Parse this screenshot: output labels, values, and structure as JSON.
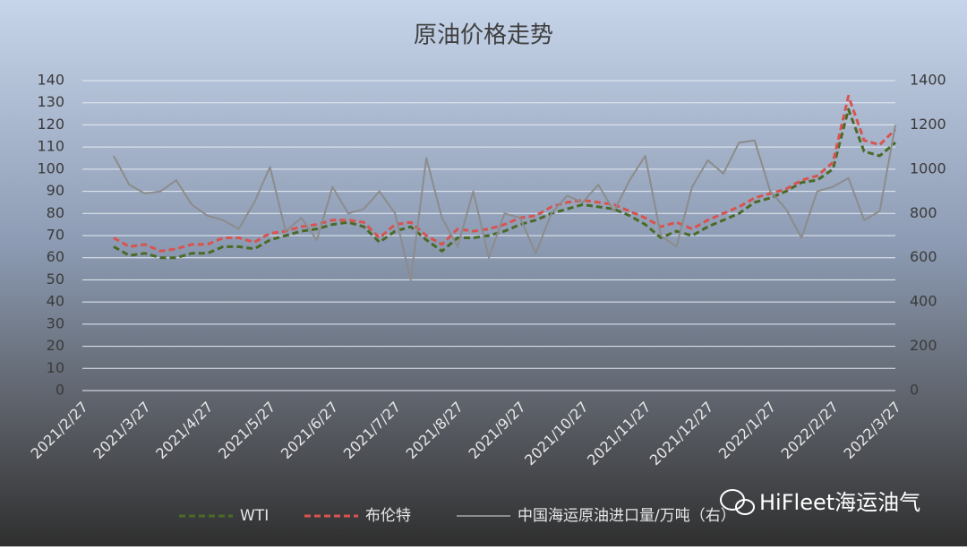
{
  "chart_data": {
    "type": "line",
    "title": "原油价格走势",
    "categories": [
      "2021/2/27",
      null,
      null,
      null,
      "2021/3/27",
      null,
      null,
      null,
      "2021/4/27",
      null,
      null,
      null,
      "2021/5/27",
      null,
      null,
      null,
      "2021/6/27",
      null,
      null,
      null,
      "2021/7/27",
      null,
      null,
      null,
      "2021/8/27",
      null,
      null,
      null,
      "2021/9/27",
      null,
      null,
      null,
      "2021/10/27",
      null,
      null,
      null,
      "2021/11/27",
      null,
      null,
      null,
      "2021/12/27",
      null,
      null,
      null,
      "2022/1/27",
      null,
      null,
      null,
      "2022/2/27",
      null,
      null,
      null,
      "2022/3/27"
    ],
    "series": [
      {
        "name": "WTI",
        "color": "#4a6a26",
        "dash": true,
        "values": [
          null,
          null,
          65,
          61,
          62,
          60,
          60,
          62,
          62,
          65,
          65,
          64,
          68,
          70,
          72,
          73,
          75,
          76,
          74,
          67,
          72,
          74,
          68,
          63,
          69,
          69,
          70,
          72,
          75,
          77,
          80,
          82,
          84,
          83,
          82,
          79,
          75,
          69,
          72,
          70,
          74,
          77,
          80,
          85,
          87,
          90,
          94,
          95,
          100,
          127,
          108,
          106,
          112
        ]
      },
      {
        "name": "布伦特",
        "color": "#d9534f",
        "dash": true,
        "values": [
          null,
          null,
          69,
          65,
          66,
          63,
          64,
          66,
          66,
          69,
          69,
          67,
          71,
          72,
          74,
          75,
          77,
          77,
          76,
          69,
          75,
          76,
          70,
          66,
          73,
          72,
          73,
          75,
          78,
          79,
          83,
          85,
          86,
          85,
          84,
          81,
          78,
          74,
          76,
          73,
          77,
          80,
          83,
          87,
          89,
          91,
          95,
          97,
          103,
          133,
          113,
          111,
          118
        ]
      },
      {
        "name": "中国海运原油进口量/万吨（右）",
        "color": "#8c8c8c",
        "dash": false,
        "axis": "y2",
        "values": [
          null,
          null,
          1060,
          930,
          890,
          900,
          950,
          840,
          790,
          770,
          730,
          850,
          1010,
          720,
          780,
          680,
          920,
          800,
          820,
          900,
          800,
          500,
          1050,
          780,
          650,
          900,
          600,
          800,
          780,
          620,
          800,
          880,
          850,
          930,
          810,
          950,
          1060,
          700,
          650,
          920,
          1040,
          980,
          1120,
          1130,
          900,
          820,
          690,
          900,
          920,
          960,
          770,
          810,
          1200
        ]
      }
    ],
    "ylim": [
      0,
      140
    ],
    "yticks": [
      0,
      10,
      20,
      30,
      40,
      50,
      60,
      70,
      80,
      90,
      100,
      110,
      120,
      130,
      140
    ],
    "y2lim": [
      0,
      1400
    ],
    "y2ticks": [
      0,
      200,
      400,
      600,
      800,
      1000,
      1200,
      1400
    ],
    "grid": true,
    "watermark": "HiFleet海运油气"
  }
}
